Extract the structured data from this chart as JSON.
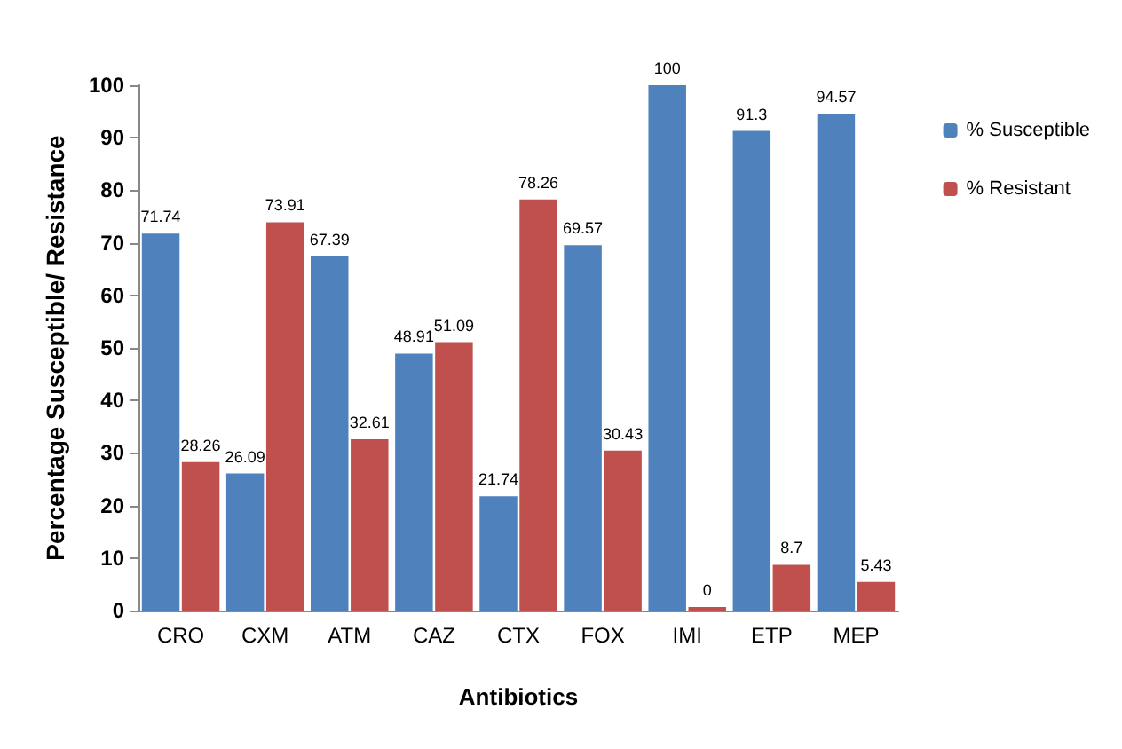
{
  "chart_data": {
    "type": "bar",
    "xlabel": "Antibiotics",
    "ylabel": "Percentage Susceptible/ Resistance",
    "categories": [
      "CRO",
      "CXM",
      "ATM",
      "CAZ",
      "CTX",
      "FOX",
      "IMI",
      "ETP",
      "MEP"
    ],
    "series": [
      {
        "name": "% Susceptible",
        "color": "#4f81bd",
        "values": [
          71.74,
          26.09,
          67.39,
          48.91,
          21.74,
          69.57,
          100,
          91.3,
          94.57
        ]
      },
      {
        "name": "% Resistant",
        "color": "#c0504d",
        "values": [
          28.26,
          73.91,
          32.61,
          51.09,
          78.26,
          30.43,
          0,
          8.7,
          5.43
        ]
      }
    ],
    "ylim": [
      0,
      100
    ],
    "yticks": [
      0,
      10,
      20,
      30,
      40,
      50,
      60,
      70,
      80,
      90,
      100
    ],
    "grid": false,
    "legend": "top right",
    "data_labels": true
  }
}
